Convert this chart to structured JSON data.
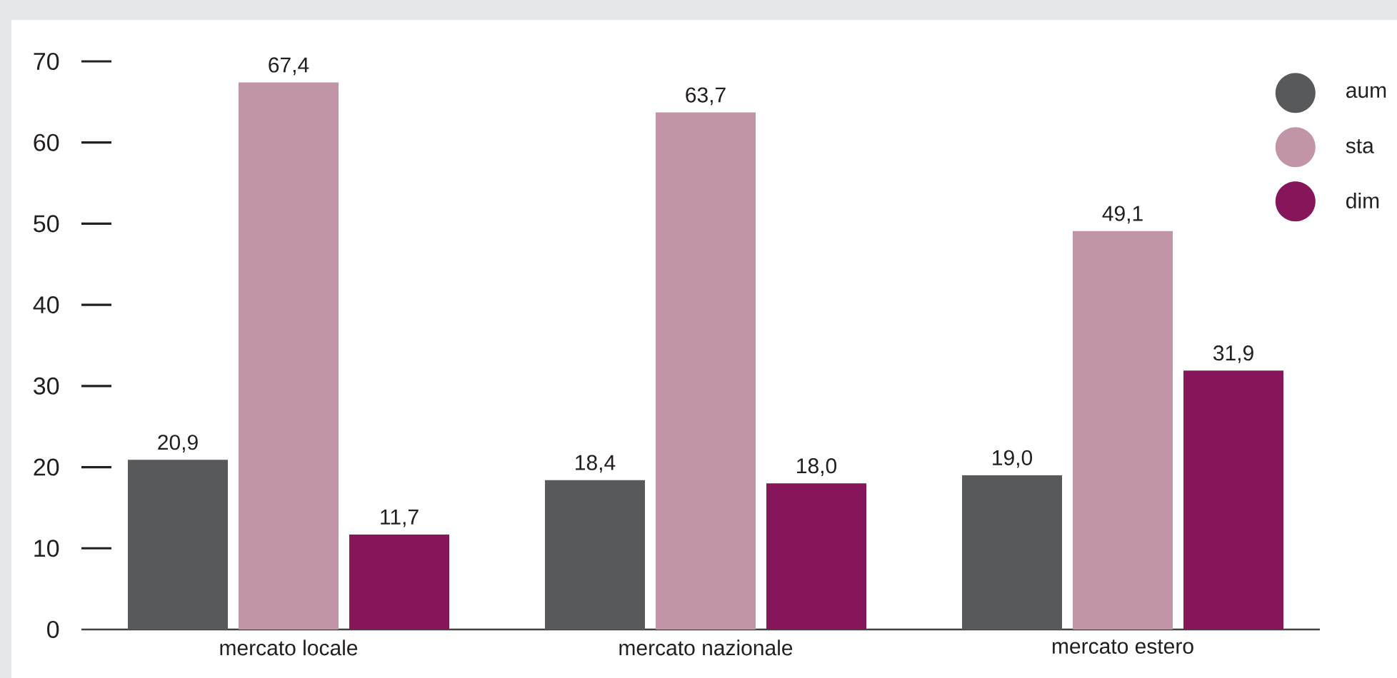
{
  "chart_data": {
    "type": "bar",
    "categories": [
      "mercato locale",
      "mercato nazionale",
      "mercato estero"
    ],
    "series": [
      {
        "name": "aum",
        "color": "#58595b",
        "values": [
          20.9,
          18.4,
          19.0
        ],
        "value_labels": [
          "20,9",
          "18,4",
          "19,0"
        ]
      },
      {
        "name": "sta",
        "color": "#c294a8",
        "values": [
          67.4,
          63.7,
          49.1
        ],
        "value_labels": [
          "67,4",
          "63,7",
          "49,1"
        ]
      },
      {
        "name": "dim",
        "color": "#87155a",
        "values": [
          11.7,
          18.0,
          31.9
        ],
        "value_labels": [
          "11,7",
          "18,0",
          "31,9"
        ]
      }
    ],
    "ylim": [
      0,
      70
    ],
    "yticks": [
      0,
      10,
      20,
      30,
      40,
      50,
      60,
      70
    ],
    "legend": "top right"
  }
}
